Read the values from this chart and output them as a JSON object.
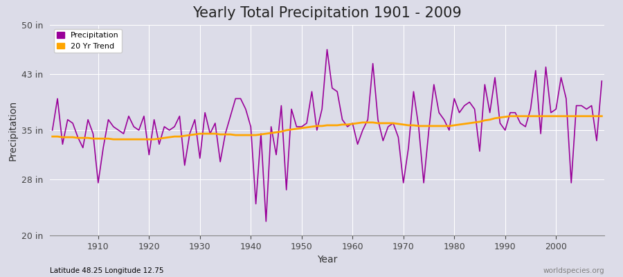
{
  "title": "Yearly Total Precipitation 1901 - 2009",
  "xlabel": "Year",
  "ylabel": "Precipitation",
  "lat_lon_label": "Latitude 48.25 Longitude 12.75",
  "watermark": "worldspecies.org",
  "years": [
    1901,
    1902,
    1903,
    1904,
    1905,
    1906,
    1907,
    1908,
    1909,
    1910,
    1911,
    1912,
    1913,
    1914,
    1915,
    1916,
    1917,
    1918,
    1919,
    1920,
    1921,
    1922,
    1923,
    1924,
    1925,
    1926,
    1927,
    1928,
    1929,
    1930,
    1931,
    1932,
    1933,
    1934,
    1935,
    1936,
    1937,
    1938,
    1939,
    1940,
    1941,
    1942,
    1943,
    1944,
    1945,
    1946,
    1947,
    1948,
    1949,
    1950,
    1951,
    1952,
    1953,
    1954,
    1955,
    1956,
    1957,
    1958,
    1959,
    1960,
    1961,
    1962,
    1963,
    1964,
    1965,
    1966,
    1967,
    1968,
    1969,
    1970,
    1971,
    1972,
    1973,
    1974,
    1975,
    1976,
    1977,
    1978,
    1979,
    1980,
    1981,
    1982,
    1983,
    1984,
    1985,
    1986,
    1987,
    1988,
    1989,
    1990,
    1991,
    1992,
    1993,
    1994,
    1995,
    1996,
    1997,
    1998,
    1999,
    2000,
    2001,
    2002,
    2003,
    2004,
    2005,
    2006,
    2007,
    2008,
    2009
  ],
  "precipitation": [
    35.0,
    39.5,
    33.0,
    36.5,
    36.0,
    34.0,
    32.5,
    36.5,
    34.5,
    27.5,
    32.5,
    36.5,
    35.5,
    35.0,
    34.5,
    37.0,
    35.5,
    35.0,
    37.0,
    31.5,
    36.5,
    33.0,
    35.5,
    35.0,
    35.5,
    37.0,
    30.0,
    34.5,
    36.5,
    31.0,
    37.5,
    34.5,
    36.0,
    30.5,
    34.5,
    37.0,
    39.5,
    39.5,
    38.0,
    35.5,
    24.5,
    34.5,
    22.0,
    35.5,
    31.5,
    38.5,
    26.5,
    38.0,
    35.5,
    35.5,
    36.0,
    40.5,
    35.0,
    38.0,
    46.5,
    41.0,
    40.5,
    36.5,
    35.5,
    36.0,
    33.0,
    35.0,
    36.5,
    44.5,
    36.5,
    33.5,
    35.5,
    36.0,
    34.0,
    27.5,
    32.5,
    40.5,
    35.5,
    27.5,
    35.0,
    41.5,
    37.5,
    36.5,
    35.0,
    39.5,
    37.5,
    38.5,
    39.0,
    38.0,
    32.0,
    41.5,
    37.5,
    42.5,
    36.0,
    35.0,
    37.5,
    37.5,
    36.0,
    35.5,
    38.0,
    43.5,
    34.5,
    44.0,
    37.5,
    38.0,
    42.5,
    39.5,
    27.5,
    38.5,
    38.5,
    38.0,
    38.5,
    33.5,
    42.0
  ],
  "trend": [
    34.1,
    34.1,
    34.0,
    34.0,
    34.0,
    33.9,
    33.9,
    33.9,
    33.8,
    33.8,
    33.8,
    33.8,
    33.7,
    33.7,
    33.7,
    33.7,
    33.7,
    33.7,
    33.7,
    33.7,
    33.7,
    33.8,
    33.9,
    34.0,
    34.1,
    34.1,
    34.2,
    34.3,
    34.4,
    34.5,
    34.5,
    34.5,
    34.5,
    34.4,
    34.4,
    34.4,
    34.3,
    34.3,
    34.3,
    34.3,
    34.3,
    34.4,
    34.5,
    34.6,
    34.7,
    34.8,
    35.0,
    35.1,
    35.2,
    35.3,
    35.4,
    35.5,
    35.6,
    35.6,
    35.7,
    35.7,
    35.7,
    35.8,
    35.8,
    35.9,
    36.0,
    36.1,
    36.1,
    36.1,
    36.0,
    36.0,
    36.0,
    36.0,
    35.9,
    35.8,
    35.7,
    35.7,
    35.6,
    35.6,
    35.6,
    35.6,
    35.6,
    35.6,
    35.6,
    35.7,
    35.8,
    35.9,
    36.0,
    36.1,
    36.2,
    36.4,
    36.5,
    36.7,
    36.8,
    36.9,
    37.0,
    37.0,
    37.0,
    37.0,
    37.0,
    37.0,
    37.0,
    37.0,
    37.0,
    37.0,
    37.0,
    37.0,
    37.0,
    37.0,
    37.0,
    37.0,
    37.0,
    37.0,
    37.0
  ],
  "precip_color": "#990099",
  "trend_color": "#FFA500",
  "bg_color": "#DCDCE8",
  "plot_bg_color": "#DCDCE8",
  "grid_color": "#FFFFFF",
  "ylim": [
    20,
    50
  ],
  "yticks": [
    20,
    28,
    35,
    43,
    50
  ],
  "ytick_labels": [
    "20 in",
    "28 in",
    "35 in",
    "43 in",
    "50 in"
  ],
  "title_fontsize": 15,
  "axis_label_fontsize": 10,
  "tick_fontsize": 9
}
